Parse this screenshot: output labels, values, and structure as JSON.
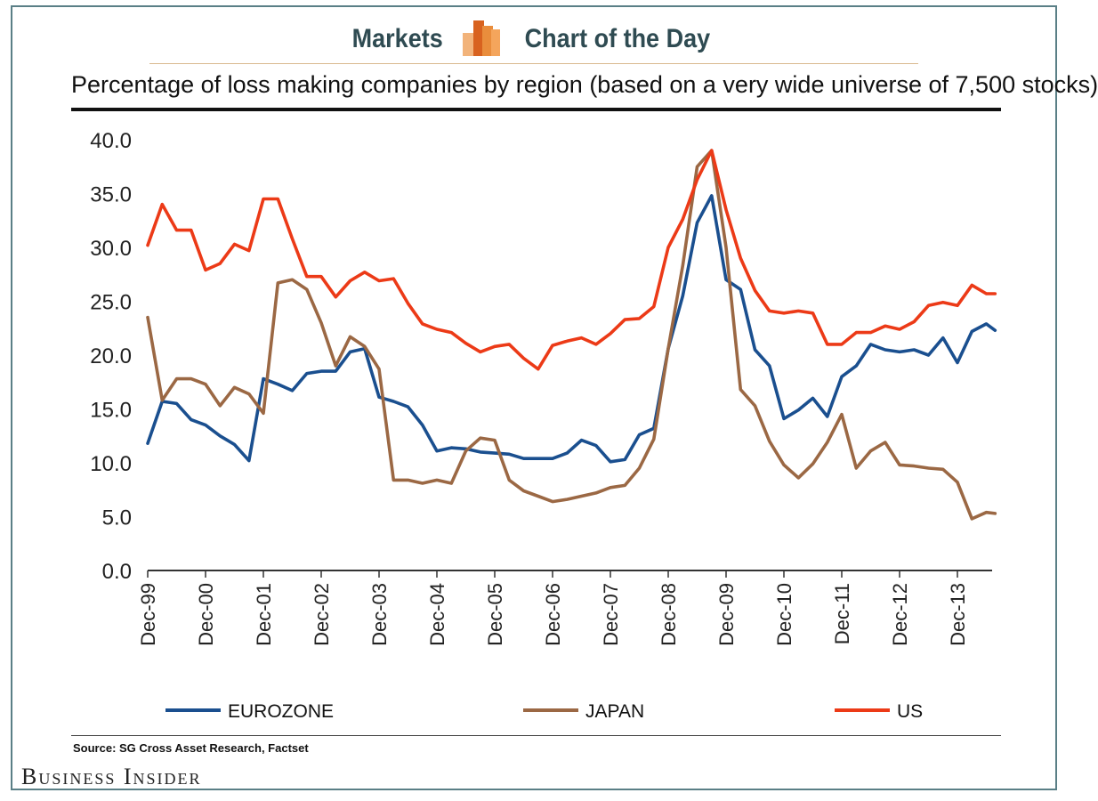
{
  "header": {
    "left_word": "Markets",
    "right_word": "Chart of the Day"
  },
  "colors": {
    "eurozone": "#1a4f8f",
    "japan": "#9b6844",
    "us": "#ec3a17",
    "header_text": "#2f4b52",
    "logo_orange": "#e8893a"
  },
  "chart_data": {
    "type": "line",
    "title": "Percentage of loss making companies by region (based on a very wide universe of 7,500 stocks)",
    "xlabel": "",
    "ylabel": "",
    "ylim": [
      0,
      40
    ],
    "yticks": [
      "0.0",
      "5.0",
      "10.0",
      "15.0",
      "20.0",
      "25.0",
      "30.0",
      "35.0",
      "40.0"
    ],
    "x_tick_labels": [
      "Dec-99",
      "Dec-00",
      "Dec-01",
      "Dec-02",
      "Dec-03",
      "Dec-04",
      "Dec-05",
      "Dec-06",
      "Dec-07",
      "Dec-08",
      "Dec-09",
      "Dec-10",
      "Dec-11",
      "Dec-12",
      "Dec-13"
    ],
    "x_domain": [
      0,
      14.6
    ],
    "series": [
      {
        "name": "EUROZONE",
        "color": "#1a4f8f",
        "x": [
          0,
          0.25,
          0.5,
          0.75,
          1,
          1.25,
          1.5,
          1.75,
          2,
          2.25,
          2.5,
          2.75,
          3,
          3.25,
          3.5,
          3.75,
          4,
          4.25,
          4.5,
          4.75,
          5,
          5.25,
          5.5,
          5.75,
          6,
          6.25,
          6.5,
          6.75,
          7,
          7.25,
          7.5,
          7.75,
          8,
          8.25,
          8.5,
          8.75,
          9,
          9.25,
          9.5,
          9.75,
          10,
          10.25,
          10.5,
          10.75,
          11,
          11.25,
          11.5,
          11.75,
          12,
          12.25,
          12.5,
          12.75,
          13,
          13.25,
          13.5,
          13.75,
          14,
          14.25,
          14.5,
          14.65
        ],
        "values": [
          11.8,
          15.7,
          15.5,
          14.0,
          13.5,
          12.5,
          11.7,
          10.2,
          17.8,
          17.3,
          16.7,
          18.3,
          18.5,
          18.5,
          20.3,
          20.6,
          16.1,
          15.7,
          15.2,
          13.5,
          11.1,
          11.4,
          11.3,
          11.0,
          10.9,
          10.8,
          10.4,
          10.4,
          10.4,
          10.9,
          12.1,
          11.6,
          10.1,
          10.3,
          12.6,
          13.2,
          20.6,
          25.5,
          32.3,
          34.8,
          27.0,
          26.1,
          20.5,
          19.0,
          14.1,
          14.9,
          16.0,
          14.3,
          18.0,
          19.0,
          21.0,
          20.5,
          20.3,
          20.5,
          20.0,
          21.6,
          19.3,
          22.2,
          22.9,
          22.3
        ]
      },
      {
        "name": "JAPAN",
        "color": "#9b6844",
        "x": [
          0,
          0.25,
          0.5,
          0.75,
          1,
          1.25,
          1.5,
          1.75,
          2,
          2.25,
          2.5,
          2.75,
          3,
          3.25,
          3.5,
          3.75,
          4,
          4.25,
          4.5,
          4.75,
          5,
          5.25,
          5.5,
          5.75,
          6,
          6.25,
          6.5,
          6.75,
          7,
          7.25,
          7.5,
          7.75,
          8,
          8.25,
          8.5,
          8.75,
          9,
          9.25,
          9.5,
          9.75,
          10,
          10.25,
          10.5,
          10.75,
          11,
          11.25,
          11.5,
          11.75,
          12,
          12.25,
          12.5,
          12.75,
          13,
          13.25,
          13.5,
          13.75,
          14,
          14.25,
          14.5,
          14.65
        ],
        "values": [
          23.5,
          15.8,
          17.8,
          17.8,
          17.3,
          15.3,
          17.0,
          16.4,
          14.6,
          26.7,
          27.0,
          26.1,
          23.0,
          19.0,
          21.7,
          20.8,
          18.7,
          8.4,
          8.4,
          8.1,
          8.4,
          8.1,
          11.1,
          12.3,
          12.1,
          8.4,
          7.4,
          6.9,
          6.4,
          6.6,
          6.9,
          7.2,
          7.7,
          7.9,
          9.5,
          12.2,
          20.6,
          28.3,
          37.5,
          39.0,
          30.0,
          16.8,
          15.3,
          12.0,
          9.8,
          8.6,
          9.9,
          11.9,
          14.5,
          9.5,
          11.1,
          11.9,
          9.8,
          9.7,
          9.5,
          9.4,
          8.2,
          4.8,
          5.4,
          5.3
        ]
      },
      {
        "name": "US",
        "color": "#ec3a17",
        "x": [
          0,
          0.25,
          0.5,
          0.75,
          1,
          1.25,
          1.5,
          1.75,
          2,
          2.25,
          2.5,
          2.75,
          3,
          3.25,
          3.5,
          3.75,
          4,
          4.25,
          4.5,
          4.75,
          5,
          5.25,
          5.5,
          5.75,
          6,
          6.25,
          6.5,
          6.75,
          7,
          7.25,
          7.5,
          7.75,
          8,
          8.25,
          8.5,
          8.75,
          9,
          9.25,
          9.5,
          9.75,
          10,
          10.25,
          10.5,
          10.75,
          11,
          11.25,
          11.5,
          11.75,
          12,
          12.25,
          12.5,
          12.75,
          13,
          13.25,
          13.5,
          13.75,
          14,
          14.25,
          14.5,
          14.65
        ],
        "values": [
          30.2,
          34.0,
          31.6,
          31.6,
          27.9,
          28.5,
          30.3,
          29.7,
          34.5,
          34.5,
          30.8,
          27.3,
          27.3,
          25.4,
          26.9,
          27.7,
          26.9,
          27.1,
          24.8,
          22.9,
          22.4,
          22.1,
          21.1,
          20.3,
          20.8,
          21.0,
          19.7,
          18.7,
          20.9,
          21.3,
          21.6,
          21.0,
          22.0,
          23.3,
          23.4,
          24.5,
          30.0,
          32.6,
          36.3,
          39.0,
          33.5,
          29.0,
          26.0,
          24.1,
          23.9,
          24.1,
          23.9,
          21.0,
          21.0,
          22.1,
          22.1,
          22.7,
          22.4,
          23.1,
          24.6,
          24.9,
          24.6,
          26.5,
          25.7,
          25.7
        ]
      }
    ],
    "legend_position": "bottom"
  },
  "source_text": "Source: SG Cross Asset Research, Factset",
  "brand": "Business Insider"
}
